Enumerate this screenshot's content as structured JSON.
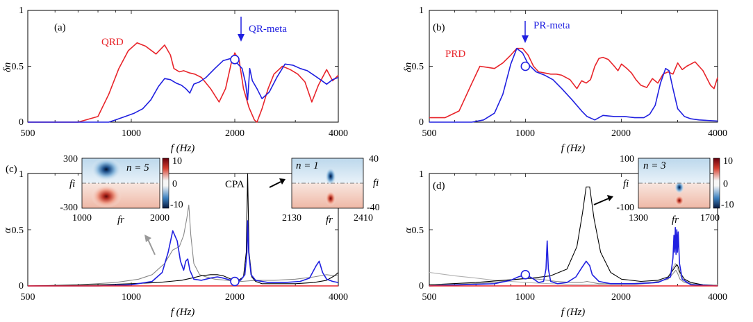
{
  "colors": {
    "red": "#e8242a",
    "blue": "#2020e0",
    "black": "#000000",
    "gray": "#888888",
    "lightgray": "#b0b0b0"
  },
  "chart_data": [
    {
      "id": "a",
      "type": "line",
      "panel_label": "(a)",
      "xscale": "log",
      "xlim": [
        500,
        4000
      ],
      "ylim": [
        0,
        1
      ],
      "xticks": [
        "500",
        "1000",
        "2000",
        "4000"
      ],
      "yticks": [
        "0",
        "0.5",
        "1"
      ],
      "xlabel": "f  (Hz)",
      "ylabel": "δn",
      "series": [
        {
          "name": "QRD",
          "color": "red",
          "x": [
            500,
            700,
            800,
            860,
            920,
            980,
            1040,
            1100,
            1180,
            1250,
            1300,
            1330,
            1380,
            1420,
            1480,
            1530,
            1600,
            1700,
            1800,
            1880,
            1950,
            2000,
            2060,
            2120,
            2200,
            2280,
            2320,
            2400,
            2500,
            2600,
            2750,
            2900,
            3050,
            3200,
            3350,
            3500,
            3700,
            3850,
            4000
          ],
          "y": [
            0,
            0,
            0.05,
            0.25,
            0.48,
            0.64,
            0.71,
            0.68,
            0.61,
            0.69,
            0.6,
            0.48,
            0.45,
            0.46,
            0.44,
            0.43,
            0.4,
            0.3,
            0.18,
            0.3,
            0.52,
            0.62,
            0.55,
            0.3,
            0.13,
            0.02,
            0.0,
            0.12,
            0.3,
            0.43,
            0.5,
            0.47,
            0.43,
            0.36,
            0.18,
            0.33,
            0.47,
            0.37,
            0.42
          ]
        },
        {
          "name": "QR-meta",
          "color": "blue",
          "x": [
            500,
            800,
            860,
            900,
            960,
            1020,
            1080,
            1140,
            1200,
            1250,
            1300,
            1350,
            1400,
            1440,
            1480,
            1520,
            1580,
            1650,
            1750,
            1850,
            1950,
            2000,
            2100,
            2150,
            2180,
            2210,
            2250,
            2320,
            2400,
            2520,
            2650,
            2800,
            2950,
            3100,
            3250,
            3400,
            3550,
            3700,
            3850,
            4000
          ],
          "y": [
            0,
            0,
            0,
            0.02,
            0.05,
            0.08,
            0.12,
            0.2,
            0.32,
            0.39,
            0.38,
            0.35,
            0.33,
            0.3,
            0.26,
            0.34,
            0.36,
            0.4,
            0.48,
            0.55,
            0.57,
            0.55,
            0.48,
            0.35,
            0.2,
            0.48,
            0.37,
            0.3,
            0.21,
            0.27,
            0.4,
            0.52,
            0.51,
            0.48,
            0.46,
            0.42,
            0.38,
            0.34,
            0.38,
            0.4
          ]
        }
      ],
      "annotations": [
        {
          "text": "QRD",
          "color": "red"
        },
        {
          "text": "QR-meta",
          "color": "blue",
          "x": 2000
        }
      ],
      "marker": {
        "x": 2000,
        "y": 0.56,
        "color": "blue"
      }
    },
    {
      "id": "b",
      "type": "line",
      "panel_label": "(b)",
      "xscale": "log",
      "xlim": [
        500,
        4000
      ],
      "ylim": [
        0,
        1
      ],
      "xticks": [
        "500",
        "1000",
        "2000",
        "4000"
      ],
      "yticks": [
        "0",
        "0.5",
        "1"
      ],
      "xlabel": "f  (Hz)",
      "ylabel": "δn",
      "series": [
        {
          "name": "PRD",
          "color": "red",
          "x": [
            500,
            560,
            620,
            680,
            720,
            760,
            800,
            850,
            900,
            940,
            980,
            1020,
            1060,
            1100,
            1150,
            1200,
            1250,
            1300,
            1380,
            1450,
            1500,
            1550,
            1600,
            1650,
            1700,
            1750,
            1820,
            1900,
            1950,
            2000,
            2080,
            2150,
            2220,
            2300,
            2400,
            2500,
            2600,
            2700,
            2800,
            2900,
            3000,
            3100,
            3200,
            3400,
            3600,
            3800,
            3900,
            4000
          ],
          "y": [
            0.04,
            0.04,
            0.1,
            0.35,
            0.5,
            0.49,
            0.48,
            0.53,
            0.6,
            0.66,
            0.66,
            0.6,
            0.5,
            0.45,
            0.44,
            0.43,
            0.43,
            0.42,
            0.38,
            0.3,
            0.37,
            0.35,
            0.38,
            0.5,
            0.57,
            0.58,
            0.56,
            0.5,
            0.46,
            0.52,
            0.48,
            0.44,
            0.38,
            0.33,
            0.31,
            0.39,
            0.35,
            0.43,
            0.45,
            0.43,
            0.53,
            0.47,
            0.5,
            0.54,
            0.46,
            0.33,
            0.3,
            0.4
          ]
        },
        {
          "name": "PR-meta",
          "color": "blue",
          "x": [
            500,
            600,
            680,
            740,
            800,
            850,
            900,
            940,
            980,
            1020,
            1080,
            1150,
            1220,
            1300,
            1400,
            1500,
            1560,
            1650,
            1750,
            1900,
            2050,
            2200,
            2350,
            2450,
            2550,
            2650,
            2750,
            2820,
            2900,
            3000,
            3150,
            3300,
            3500,
            4000
          ],
          "y": [
            0,
            0,
            0,
            0.02,
            0.08,
            0.25,
            0.52,
            0.66,
            0.62,
            0.52,
            0.45,
            0.42,
            0.38,
            0.3,
            0.2,
            0.1,
            0.05,
            0.02,
            0.06,
            0.05,
            0.05,
            0.04,
            0.04,
            0.07,
            0.15,
            0.35,
            0.48,
            0.46,
            0.3,
            0.12,
            0.05,
            0.03,
            0.02,
            0.01
          ]
        }
      ],
      "annotations": [
        {
          "text": "PRD",
          "color": "red"
        },
        {
          "text": "PR-meta",
          "color": "blue",
          "x": 1000
        }
      ],
      "marker": {
        "x": 1000,
        "y": 0.5,
        "color": "blue"
      }
    },
    {
      "id": "c",
      "type": "line",
      "panel_label": "(c)",
      "xscale": "log",
      "xlim": [
        500,
        4000
      ],
      "ylim": [
        0,
        1
      ],
      "xticks": [
        "500",
        "1000",
        "2000",
        "4000"
      ],
      "yticks": [
        "0",
        "0.5",
        "1"
      ],
      "xlabel": "f  (Hz)",
      "ylabel": "α",
      "series": [
        {
          "color": "gray",
          "x": [
            500,
            700,
            900,
            1050,
            1150,
            1250,
            1320,
            1380,
            1420,
            1450,
            1470,
            1490,
            1520,
            1580,
            1650,
            1750,
            1900,
            2000,
            2100,
            2300,
            2600,
            3000,
            3400,
            3700,
            3900,
            4000
          ],
          "y": [
            0,
            0.01,
            0.03,
            0.06,
            0.1,
            0.2,
            0.32,
            0.35,
            0.45,
            0.6,
            0.72,
            0.45,
            0.2,
            0.1,
            0.08,
            0.06,
            0.05,
            0.04,
            0.04,
            0.05,
            0.05,
            0.06,
            0.08,
            0.1,
            0.09,
            0.1
          ]
        },
        {
          "color": "black",
          "x": [
            500,
            800,
            1000,
            1200,
            1400,
            1500,
            1600,
            1700,
            1780,
            1850,
            1950,
            2050,
            2120,
            2160,
            2180,
            2200,
            2240,
            2300,
            2400,
            2600,
            3000,
            3400,
            3700,
            3900,
            4000
          ],
          "y": [
            0,
            0.01,
            0.02,
            0.03,
            0.05,
            0.07,
            0.09,
            0.1,
            0.1,
            0.09,
            0.06,
            0.05,
            0.08,
            0.3,
            1.0,
            0.3,
            0.08,
            0.04,
            0.02,
            0.02,
            0.02,
            0.03,
            0.05,
            0.09,
            0.12
          ]
        },
        {
          "color": "blue",
          "x": [
            500,
            800,
            1000,
            1150,
            1230,
            1280,
            1320,
            1360,
            1390,
            1420,
            1440,
            1460,
            1480,
            1520,
            1600,
            1700,
            1780,
            1850,
            1950,
            2000,
            2080,
            2140,
            2170,
            2180,
            2195,
            2230,
            2300,
            2500,
            2800,
            3100,
            3300,
            3450,
            3520,
            3600,
            3700,
            3850,
            4000
          ],
          "y": [
            0,
            0,
            0.01,
            0.04,
            0.12,
            0.3,
            0.49,
            0.4,
            0.22,
            0.14,
            0.22,
            0.24,
            0.14,
            0.06,
            0.05,
            0.07,
            0.08,
            0.07,
            0.05,
            0.04,
            0.05,
            0.1,
            0.3,
            0.58,
            0.3,
            0.1,
            0.05,
            0.03,
            0.03,
            0.04,
            0.07,
            0.18,
            0.22,
            0.12,
            0.06,
            0.04,
            0.03
          ]
        },
        {
          "color": "red",
          "x": [
            500,
            4000
          ],
          "y": [
            0,
            0
          ]
        }
      ],
      "annotations": [
        {
          "text": "CPA",
          "color": "black"
        }
      ],
      "marker": {
        "x": 2000,
        "y": 0.04,
        "color": "blue"
      },
      "insets": [
        {
          "n_label": "n = 5",
          "xticks": [
            "1000",
            "2000"
          ],
          "xlabel": "fr",
          "ylabel": "fi",
          "yticks": [
            "300",
            "-300"
          ],
          "colorbar_ticks": [
            "10",
            "0",
            "-10"
          ]
        },
        {
          "n_label": "n = 1",
          "xticks": [
            "2130",
            "2410"
          ],
          "xlabel": "fr",
          "ylabel": "fi",
          "yticks": [
            "40",
            "-40"
          ]
        }
      ]
    },
    {
      "id": "d",
      "type": "line",
      "panel_label": "(d)",
      "xscale": "log",
      "xlim": [
        500,
        4000
      ],
      "ylim": [
        0,
        1
      ],
      "xticks": [
        "500",
        "1000",
        "2000",
        "4000"
      ],
      "yticks": [
        "0",
        "0.5",
        "1"
      ],
      "xlabel": "f  (Hz)",
      "ylabel": "α",
      "series": [
        {
          "color": "lightgray",
          "x": [
            500,
            600,
            700,
            800,
            900,
            1000,
            1200,
            1500,
            1800,
            2200,
            2600,
            2800,
            2900,
            2950,
            3000,
            3100,
            3300,
            3600,
            4000
          ],
          "y": [
            0.12,
            0.09,
            0.07,
            0.05,
            0.04,
            0.03,
            0.02,
            0.01,
            0.01,
            0.01,
            0.03,
            0.07,
            0.16,
            0.2,
            0.15,
            0.06,
            0.02,
            0.01,
            0.01
          ]
        },
        {
          "color": "gray",
          "x": [
            500,
            800,
            950,
            1000,
            1100,
            1250,
            1400,
            1500,
            1560,
            1620,
            1700,
            1850,
            2100,
            2500,
            2800,
            2920,
            2960,
            3000,
            3050,
            3150,
            3400,
            4000
          ],
          "y": [
            0,
            0.03,
            0.06,
            0.07,
            0.06,
            0.04,
            0.03,
            0.03,
            0.04,
            0.03,
            0.02,
            0.02,
            0.02,
            0.03,
            0.06,
            0.12,
            0.14,
            0.11,
            0.06,
            0.03,
            0.01,
            0
          ]
        },
        {
          "color": "black",
          "x": [
            500,
            700,
            850,
            950,
            1050,
            1200,
            1350,
            1450,
            1510,
            1550,
            1590,
            1640,
            1720,
            1850,
            2000,
            2300,
            2600,
            2800,
            2930,
            2980,
            3000,
            3050,
            3150,
            3300,
            3600,
            4000
          ],
          "y": [
            0.01,
            0.03,
            0.05,
            0.06,
            0.07,
            0.09,
            0.15,
            0.35,
            0.65,
            0.88,
            0.88,
            0.6,
            0.3,
            0.12,
            0.06,
            0.04,
            0.05,
            0.08,
            0.16,
            0.19,
            0.18,
            0.12,
            0.06,
            0.03,
            0.01,
            0
          ]
        },
        {
          "color": "blue",
          "x": [
            500,
            800,
            900,
            950,
            1000,
            1050,
            1100,
            1140,
            1160,
            1170,
            1180,
            1200,
            1260,
            1350,
            1440,
            1500,
            1550,
            1590,
            1620,
            1700,
            1850,
            2200,
            2600,
            2850,
            2900,
            2920,
            2935,
            2950,
            2965,
            2980,
            2995,
            3010,
            3040,
            3100,
            3300,
            4000
          ],
          "y": [
            0,
            0.02,
            0.05,
            0.08,
            0.1,
            0.07,
            0.03,
            0.04,
            0.15,
            0.4,
            0.15,
            0.04,
            0.02,
            0.03,
            0.08,
            0.16,
            0.22,
            0.18,
            0.1,
            0.04,
            0.02,
            0.02,
            0.03,
            0.08,
            0.25,
            0.45,
            0.3,
            0.52,
            0.28,
            0.5,
            0.3,
            0.48,
            0.2,
            0.06,
            0.01,
            0
          ]
        },
        {
          "color": "red",
          "x": [
            500,
            4000
          ],
          "y": [
            0,
            0
          ]
        }
      ],
      "marker": {
        "x": 1000,
        "y": 0.1,
        "color": "blue"
      },
      "insets": [
        {
          "n_label": "n = 3",
          "xticks": [
            "1300",
            "1700"
          ],
          "xlabel": "fr",
          "ylabel": "fi",
          "yticks": [
            "100",
            "-100"
          ],
          "colorbar_ticks": [
            "10",
            "0",
            "-10"
          ]
        }
      ]
    }
  ]
}
